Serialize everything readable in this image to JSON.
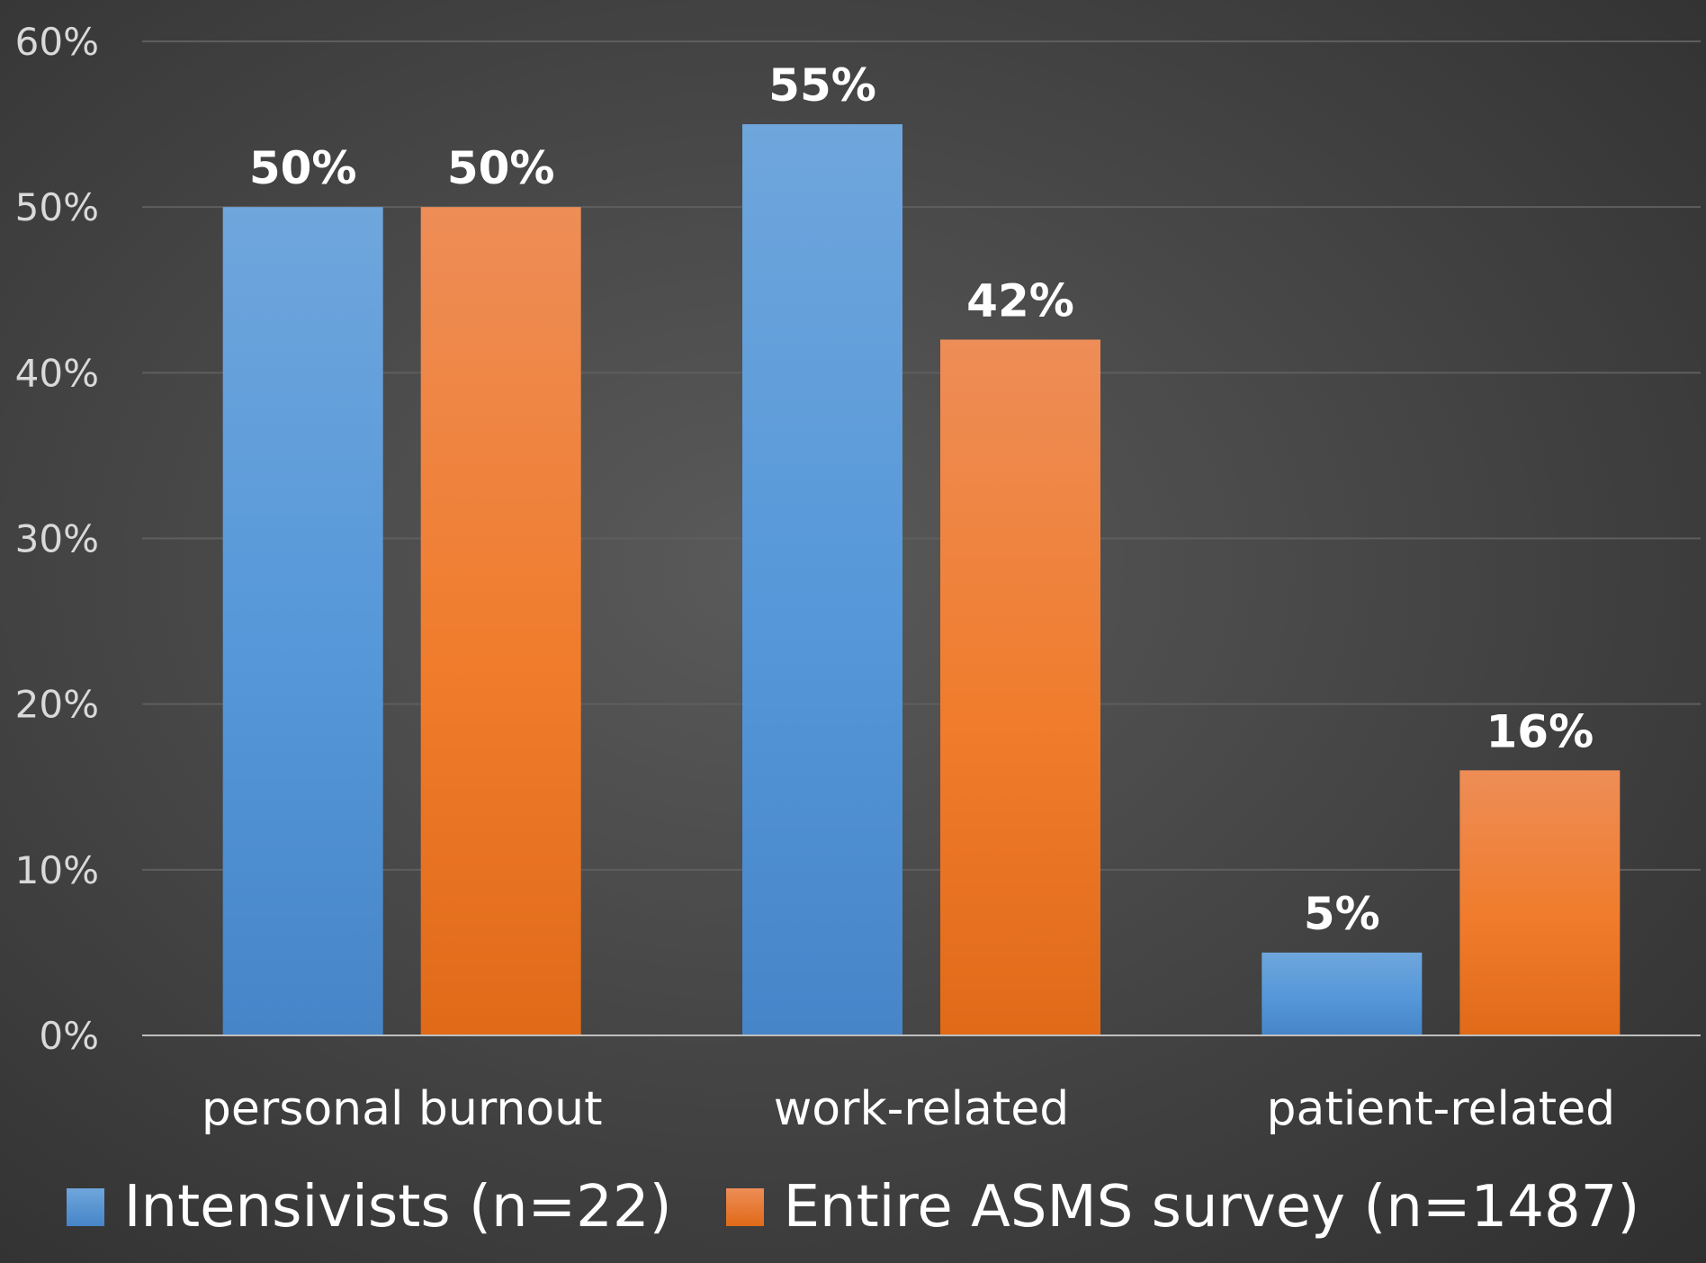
{
  "chart_data": {
    "type": "bar",
    "categories": [
      "personal burnout",
      "work-related",
      "patient-related"
    ],
    "series": [
      {
        "name": "Intensivists (n=22)",
        "values": [
          50,
          55,
          5
        ],
        "labels": [
          "50%",
          "55%",
          "5%"
        ],
        "color": "#5b9bd5"
      },
      {
        "name": "Entire ASMS survey (n=1487)",
        "values": [
          50,
          42,
          16
        ],
        "labels": [
          "50%",
          "42%",
          "16%"
        ],
        "color": "#ed7d31"
      }
    ],
    "ylim": [
      0,
      60
    ],
    "yticks": [
      0,
      10,
      20,
      30,
      40,
      50,
      60
    ],
    "ytick_labels": [
      "0%",
      "10%",
      "20%",
      "30%",
      "40%",
      "50%",
      "60%"
    ],
    "grid": true,
    "legend_position": "bottom",
    "title": "",
    "xlabel": "",
    "ylabel": ""
  },
  "colors": {
    "background": "#3f3f3f",
    "gridline": "#5e5e5e",
    "axis_line": "#bfbfbf",
    "tick_text": "#d9d9d9",
    "label_text": "#ffffff"
  }
}
